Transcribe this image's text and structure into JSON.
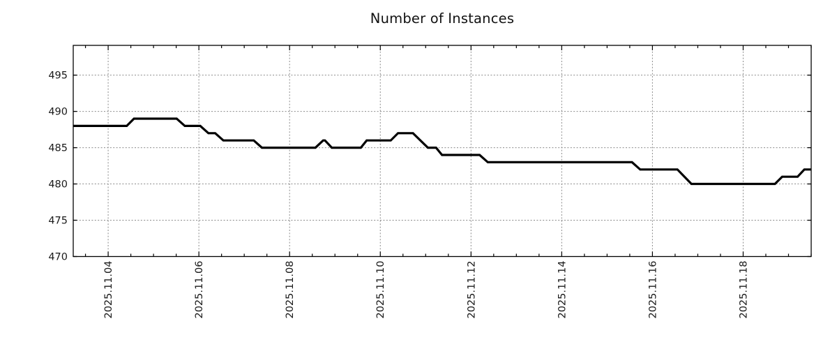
{
  "page": {
    "background": "#ffffff"
  },
  "chart_data": {
    "type": "line",
    "title": "Number of Instances",
    "xlabel": "",
    "ylabel": "",
    "legend": "none",
    "grid": true,
    "grid_color": "#8a8a8a",
    "axis_color": "#000000",
    "text_color": "#1a1a1a",
    "line_color": "#000000",
    "line_width": 3.2,
    "xlim": [
      3.23,
      19.5
    ],
    "ylim": [
      470,
      499.1
    ],
    "x_minor_tick_step": 0.5,
    "y_ticks": [
      470,
      475,
      480,
      485,
      490,
      495
    ],
    "x_ticks": [
      {
        "x": 4,
        "label": "2025.11.04"
      },
      {
        "x": 6,
        "label": "2025.11.06"
      },
      {
        "x": 8,
        "label": "2025.11.08"
      },
      {
        "x": 10,
        "label": "2025.11.10"
      },
      {
        "x": 12,
        "label": "2025.11.12"
      },
      {
        "x": 14,
        "label": "2025.11.14"
      },
      {
        "x": 16,
        "label": "2025.11.16"
      },
      {
        "x": 18,
        "label": "2025.11.18"
      }
    ],
    "series": [
      {
        "name": "instances",
        "points": [
          [
            3.23,
            488
          ],
          [
            4.41,
            488
          ],
          [
            4.57,
            489
          ],
          [
            5.51,
            489
          ],
          [
            5.69,
            488
          ],
          [
            6.03,
            488
          ],
          [
            6.21,
            487
          ],
          [
            6.36,
            487
          ],
          [
            6.54,
            486
          ],
          [
            7.21,
            486
          ],
          [
            7.39,
            485
          ],
          [
            8.57,
            485
          ],
          [
            8.74,
            486
          ],
          [
            8.78,
            486
          ],
          [
            8.93,
            485
          ],
          [
            9.57,
            485
          ],
          [
            9.7,
            486
          ],
          [
            10.23,
            486
          ],
          [
            10.39,
            487
          ],
          [
            10.72,
            487
          ],
          [
            11.05,
            485
          ],
          [
            11.23,
            485
          ],
          [
            11.36,
            484
          ],
          [
            12.19,
            484
          ],
          [
            12.37,
            483
          ],
          [
            15.55,
            483
          ],
          [
            15.73,
            482
          ],
          [
            16.55,
            482
          ],
          [
            16.86,
            480
          ],
          [
            18.7,
            480
          ],
          [
            18.86,
            481
          ],
          [
            19.2,
            481
          ],
          [
            19.35,
            482
          ],
          [
            19.5,
            482
          ]
        ]
      }
    ]
  }
}
